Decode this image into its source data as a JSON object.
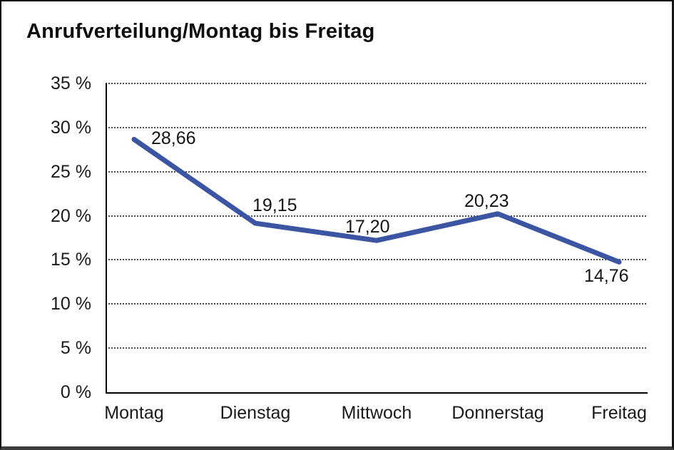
{
  "chart_data": {
    "type": "line",
    "title": "Anrufverteilung/Montag bis Freitag",
    "categories": [
      "Montag",
      "Dienstag",
      "Mittwoch",
      "Donnerstag",
      "Freitag"
    ],
    "values": [
      28.66,
      19.15,
      17.2,
      20.23,
      14.76
    ],
    "value_labels": [
      "28,66",
      "19,15",
      "17,20",
      "20,23",
      "14,76"
    ],
    "yticks": [
      35,
      30,
      25,
      20,
      15,
      10,
      5,
      0
    ],
    "ytick_labels": [
      "35 %",
      "30 %",
      "25 %",
      "20 %",
      "15 %",
      "10 %",
      "5 %",
      "0 %"
    ],
    "ylim": [
      0,
      35
    ],
    "xlabel": "",
    "ylabel": "",
    "legend": "none",
    "grid": "horizontal-dotted",
    "line_color": "#3B55A3",
    "axis_color": "#000000",
    "background_color": "#ffffff"
  }
}
